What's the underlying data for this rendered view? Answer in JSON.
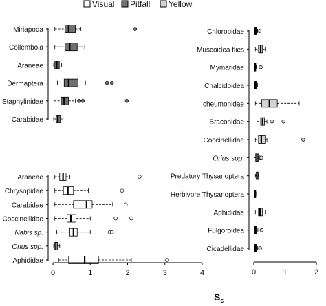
{
  "chart_data": {
    "type": "boxplot",
    "legend": {
      "placement": "top-center",
      "entries": [
        {
          "label": "Visual",
          "color": "#ffffff"
        },
        {
          "label": "Pitfall",
          "color": "#707070"
        },
        {
          "label": "Yellow",
          "color": "#d3d3d3"
        }
      ]
    },
    "xlabel": "S",
    "xlabel_sub": "c",
    "panels": [
      {
        "id": "top-left",
        "xlim": [
          0,
          4
        ],
        "xticks": [],
        "groups": [
          {
            "label": "Miriapoda",
            "italic": false,
            "fill": "Pitfall",
            "whisker_low": 0.05,
            "q1": 0.32,
            "median": 0.42,
            "q3": 0.6,
            "whisker_high": 0.75,
            "outliers": [
              2.2
            ]
          },
          {
            "label": "Collembola",
            "italic": false,
            "fill": "Pitfall",
            "whisker_low": 0.05,
            "q1": 0.32,
            "median": 0.45,
            "q3": 0.65,
            "whisker_high": 0.85,
            "outliers": []
          },
          {
            "label": "Araneae",
            "italic": false,
            "fill": "Pitfall",
            "whisker_low": 0.02,
            "q1": 0.05,
            "median": 0.1,
            "q3": 0.17,
            "whisker_high": 0.23,
            "outliers": []
          },
          {
            "label": "Dermaptera",
            "italic": false,
            "fill": "Pitfall",
            "whisker_low": 0.12,
            "q1": 0.3,
            "median": 0.42,
            "q3": 0.67,
            "whisker_high": 0.87,
            "outliers": [
              1.45,
              1.58
            ]
          },
          {
            "label": "Staphylinidae",
            "italic": false,
            "fill": "Pitfall",
            "whisker_low": 0.03,
            "q1": 0.22,
            "median": 0.3,
            "q3": 0.42,
            "whisker_high": 0.6,
            "outliers": [
              0.7,
              0.8,
              1.98
            ]
          },
          {
            "label": "Carabidae",
            "italic": false,
            "fill": "Pitfall",
            "whisker_low": 0.02,
            "q1": 0.08,
            "median": 0.13,
            "q3": 0.2,
            "whisker_high": 0.27,
            "outliers": []
          }
        ]
      },
      {
        "id": "bottom-left",
        "xlim": [
          0,
          4
        ],
        "xticks": [
          0,
          1,
          2,
          3,
          4
        ],
        "groups": [
          {
            "label": "Araneae",
            "italic": false,
            "fill": "Visual",
            "whisker_low": 0.05,
            "q1": 0.18,
            "median": 0.27,
            "q3": 0.35,
            "whisker_high": 0.45,
            "outliers": [
              2.32
            ]
          },
          {
            "label": "Chrysopidae",
            "italic": false,
            "fill": "Visual",
            "whisker_low": 0.05,
            "q1": 0.28,
            "median": 0.4,
            "q3": 0.55,
            "whisker_high": 0.95,
            "outliers": [
              1.85
            ]
          },
          {
            "label": "Carabidae",
            "italic": false,
            "fill": "Visual",
            "whisker_low": 0.05,
            "q1": 0.55,
            "median": 0.9,
            "q3": 1.05,
            "whisker_high": 1.6,
            "outliers": [
              1.95
            ]
          },
          {
            "label": "Coccinellidae",
            "italic": false,
            "fill": "Visual",
            "whisker_low": 0.05,
            "q1": 0.38,
            "median": 0.48,
            "q3": 0.62,
            "whisker_high": 1.0,
            "outliers": [
              1.68,
              2.1
            ]
          },
          {
            "label": "Nabis sp.",
            "italic": true,
            "fill": "Visual",
            "whisker_low": 0.1,
            "q1": 0.45,
            "median": 0.55,
            "q3": 0.65,
            "whisker_high": 1.0,
            "outliers": [
              1.52,
              1.58
            ]
          },
          {
            "label": "Orius spp.",
            "italic": true,
            "fill": "Visual",
            "whisker_low": 0.02,
            "q1": 0.05,
            "median": 0.08,
            "q3": 0.12,
            "whisker_high": 0.18,
            "outliers": []
          },
          {
            "label": "Aphididae",
            "italic": false,
            "fill": "Visual",
            "whisker_low": 0.15,
            "q1": 0.42,
            "median": 0.85,
            "q3": 1.22,
            "whisker_high": 2.1,
            "outliers": [
              3.05
            ]
          }
        ]
      },
      {
        "id": "right",
        "xlim": [
          0,
          2
        ],
        "xticks": [
          0,
          1,
          2
        ],
        "groups": [
          {
            "label": "Chloropidae",
            "italic": false,
            "fill": "Yellow",
            "whisker_low": 0.01,
            "q1": 0.03,
            "median": 0.05,
            "q3": 0.08,
            "whisker_high": 0.12,
            "outliers": [
              0.18
            ]
          },
          {
            "label": "Muscoidea flies",
            "italic": false,
            "fill": "Yellow",
            "whisker_low": 0.05,
            "q1": 0.15,
            "median": 0.22,
            "q3": 0.28,
            "whisker_high": 0.38,
            "outliers": []
          },
          {
            "label": "Mymaridae",
            "italic": false,
            "fill": "Yellow",
            "whisker_low": 0.01,
            "q1": 0.02,
            "median": 0.04,
            "q3": 0.06,
            "whisker_high": 0.08,
            "outliers": [
              0.22
            ]
          },
          {
            "label": "Chalcidoidea",
            "italic": false,
            "fill": "Yellow",
            "whisker_low": 0.01,
            "q1": 0.03,
            "median": 0.05,
            "q3": 0.08,
            "whisker_high": 0.12,
            "outliers": []
          },
          {
            "label": "Icheumonidae",
            "italic": false,
            "fill": "Yellow",
            "whisker_low": 0.05,
            "q1": 0.25,
            "median": 0.5,
            "q3": 0.75,
            "whisker_high": 1.45,
            "outliers": []
          },
          {
            "label": "Braconidae",
            "italic": false,
            "fill": "Yellow",
            "whisker_low": 0.1,
            "q1": 0.22,
            "median": 0.28,
            "q3": 0.34,
            "whisker_high": 0.42,
            "outliers": [
              0.58,
              0.95
            ]
          },
          {
            "label": "Coccinellidae",
            "italic": false,
            "fill": "Yellow",
            "whisker_low": 0.05,
            "q1": 0.15,
            "median": 0.24,
            "q3": 0.38,
            "whisker_high": 0.42,
            "outliers": [
              1.58
            ]
          },
          {
            "label": "Orius spp.",
            "italic": true,
            "fill": "Yellow",
            "whisker_low": 0.01,
            "q1": 0.06,
            "median": 0.1,
            "q3": 0.14,
            "whisker_high": 0.18,
            "outliers": [
              0.2,
              0.24
            ]
          },
          {
            "label": "Predatory Thysanoptera",
            "italic": false,
            "fill": "Yellow",
            "whisker_low": 0.05,
            "q1": 0.08,
            "median": 0.1,
            "q3": 0.14,
            "whisker_high": 0.16,
            "outliers": []
          },
          {
            "label": "Herbivore Thysanoptera",
            "italic": false,
            "fill": "Yellow",
            "whisker_low": 0.01,
            "q1": 0.02,
            "median": 0.03,
            "q3": 0.05,
            "whisker_high": 0.07,
            "outliers": []
          },
          {
            "label": "Aphididae",
            "italic": false,
            "fill": "Yellow",
            "whisker_low": 0.05,
            "q1": 0.15,
            "median": 0.2,
            "q3": 0.28,
            "whisker_high": 0.38,
            "outliers": []
          },
          {
            "label": "Fulgoroidea",
            "italic": false,
            "fill": "Yellow",
            "whisker_low": 0.01,
            "q1": 0.03,
            "median": 0.06,
            "q3": 0.09,
            "whisker_high": 0.13,
            "outliers": [
              0.25
            ]
          },
          {
            "label": "Cicadellidae",
            "italic": false,
            "fill": "Yellow",
            "whisker_low": 0.01,
            "q1": 0.03,
            "median": 0.05,
            "q3": 0.08,
            "whisker_high": 0.12,
            "outliers": [
              0.2
            ]
          }
        ]
      }
    ]
  }
}
